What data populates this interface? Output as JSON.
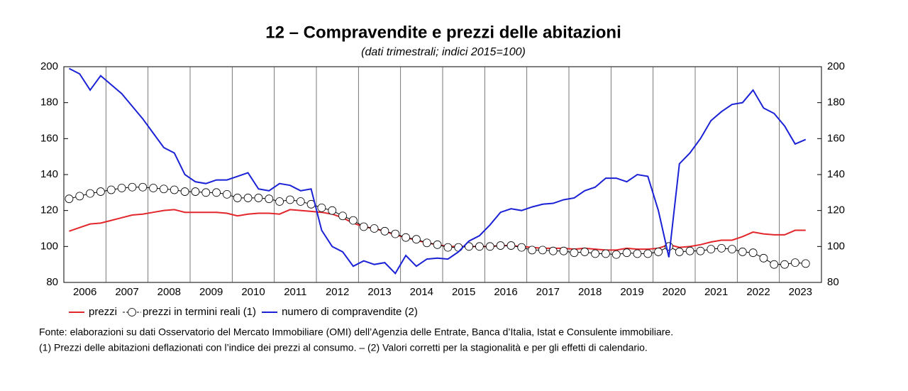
{
  "chart_data": {
    "type": "line",
    "title": "12 – Compravendite e prezzi delle abitazioni",
    "subtitle": "(dati trimestrali; indici 2015=100)",
    "categories": [
      null,
      "2006",
      null,
      null,
      null,
      "2007",
      null,
      null,
      null,
      "2008",
      null,
      null,
      null,
      "2009",
      null,
      null,
      null,
      "2010",
      null,
      null,
      null,
      "2011",
      null,
      null,
      null,
      "2012",
      null,
      null,
      null,
      "2013",
      null,
      null,
      null,
      "2014",
      null,
      null,
      null,
      "2015",
      null,
      null,
      null,
      "2016",
      null,
      null,
      null,
      "2017",
      null,
      null,
      null,
      "2018",
      null,
      null,
      null,
      "2019",
      null,
      null,
      null,
      "2020",
      null,
      null,
      null,
      "2021",
      null,
      null,
      null,
      "2022",
      null,
      null,
      null,
      "2023",
      null,
      null
    ],
    "series": [
      {
        "name": "prezzi",
        "color": "#e3262b",
        "marker": "none",
        "values": [
          108.5,
          110.5,
          112.5,
          113,
          114.5,
          116,
          117.5,
          118,
          119,
          120,
          120.5,
          119,
          119,
          119,
          119,
          118.5,
          117,
          118,
          118.5,
          118.5,
          118,
          120.5,
          120,
          119.5,
          119,
          118,
          116,
          113,
          111,
          110,
          108.5,
          106.5,
          105,
          103.5,
          102,
          101,
          100,
          100,
          100,
          100,
          100,
          100.5,
          100.5,
          100,
          99.5,
          99,
          99,
          99,
          98.5,
          99,
          98.5,
          98,
          98,
          99,
          98.5,
          98.5,
          99,
          101,
          99.5,
          100,
          101,
          102.5,
          103.5,
          103.5,
          105.5,
          108,
          107,
          106.5,
          106.5,
          109,
          109,
          null
        ]
      },
      {
        "name": "prezzi in termini reali (1)",
        "color": "#000000",
        "marker": "circle",
        "values": [
          126.5,
          128,
          129.5,
          130.5,
          131.5,
          132.5,
          133,
          133,
          132.5,
          132,
          131.5,
          130.5,
          130.5,
          130,
          130,
          129,
          127,
          127,
          127,
          126.5,
          125,
          126,
          125,
          123.5,
          121.5,
          120,
          117,
          114.5,
          111,
          110,
          108.5,
          107,
          105,
          104,
          102,
          101,
          99.5,
          99.5,
          100,
          100,
          100,
          100.5,
          100.5,
          99.5,
          98,
          98,
          97.5,
          97.5,
          96.5,
          97,
          96,
          96,
          95.5,
          96.5,
          96,
          96,
          97,
          100,
          97,
          97.5,
          97.5,
          98.5,
          99,
          98.5,
          97,
          96.5,
          93.5,
          90,
          90,
          91,
          90.5,
          null
        ]
      },
      {
        "name": "numero di compravendite (2)",
        "color": "#1b22d6",
        "marker": "none",
        "values": [
          199,
          196,
          187,
          195,
          190,
          185,
          178,
          171,
          163,
          155,
          152,
          140,
          136,
          135,
          137,
          137,
          139,
          141,
          132,
          131,
          135,
          134,
          131,
          132,
          109,
          100,
          97,
          89,
          92,
          90,
          91,
          85,
          95,
          89,
          93,
          93.5,
          93,
          97,
          103,
          106,
          112,
          119,
          121,
          120,
          122,
          123.5,
          124,
          126,
          127,
          131,
          133,
          138,
          138,
          136,
          140,
          139,
          120,
          94,
          146,
          152,
          160,
          170,
          175,
          179,
          180,
          187,
          177,
          174,
          167,
          157,
          159.5,
          null
        ]
      }
    ],
    "ylim": [
      80,
      200
    ],
    "yticks": [
      80,
      100,
      120,
      140,
      160,
      180,
      200
    ],
    "grid": false,
    "notes": [
      "Fonte: elaborazioni su dati Osservatorio del Mercato Immobiliare (OMI) dell’Agenzia delle Entrate, Banca d’Italia, Istat e Consulente immobiliare.",
      "(1) Prezzi delle abitazioni deflazionati con l’indice dei prezzi al consumo. – (2) Valori corretti per la stagionalità e per gli effetti di calendario."
    ]
  }
}
